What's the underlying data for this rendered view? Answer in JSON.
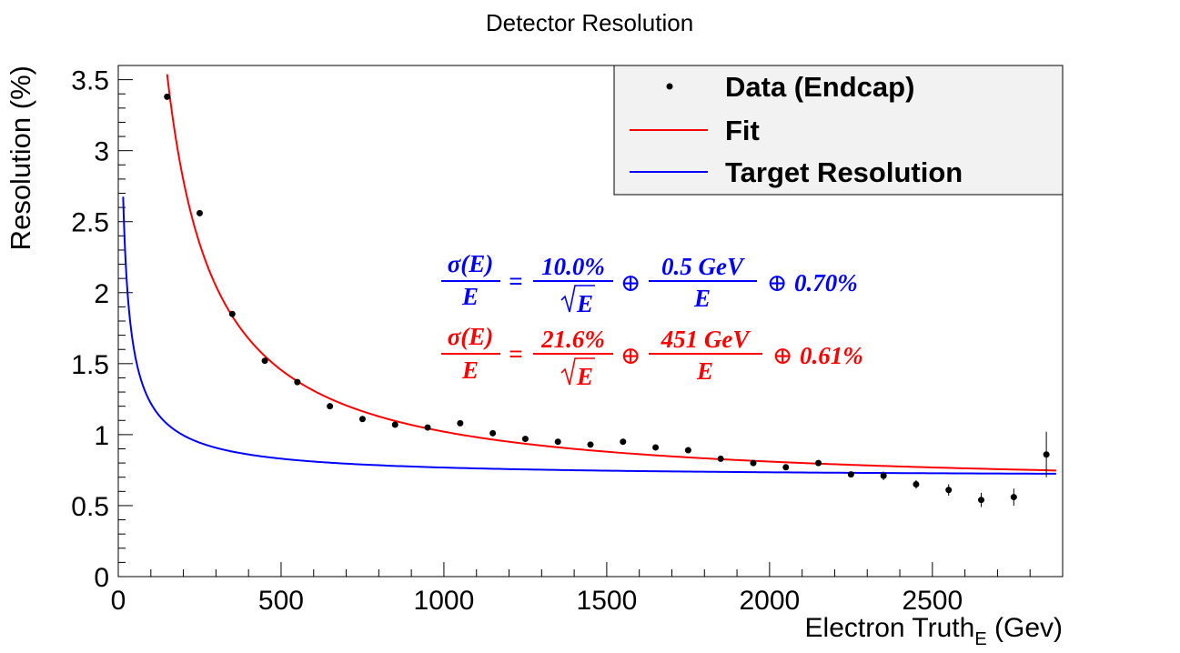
{
  "chart_data": {
    "type": "scatter",
    "title": "Detector Resolution",
    "ylabel": "Resolution (%)",
    "xlabel_main": "Electron Truth",
    "xlabel_sub": "E",
    "xlabel_unit": " (Gev)",
    "xlim": [
      0,
      2900
    ],
    "ylim": [
      0,
      3.6
    ],
    "xticks": [
      0,
      500,
      1000,
      1500,
      2000,
      2500
    ],
    "xtick_labels": [
      "0",
      "500",
      "1000",
      "1500",
      "2000",
      "2500"
    ],
    "yticks": [
      0,
      0.5,
      1,
      1.5,
      2,
      2.5,
      3,
      3.5
    ],
    "ytick_labels": [
      "0",
      "0.5",
      "1",
      "1.5",
      "2",
      "2.5",
      "3",
      "3.5"
    ],
    "legend": {
      "placement": "top-right",
      "entries": [
        "Data (Endcap)",
        "Fit",
        "Target Resolution"
      ]
    },
    "series": [
      {
        "name": "Data (Endcap)",
        "kind": "points",
        "color": "#000000",
        "x": [
          150,
          250,
          350,
          450,
          550,
          650,
          750,
          850,
          950,
          1050,
          1150,
          1250,
          1350,
          1450,
          1550,
          1650,
          1750,
          1850,
          1950,
          2050,
          2150,
          2250,
          2350,
          2450,
          2550,
          2650,
          2750,
          2850
        ],
        "y": [
          3.38,
          2.56,
          1.85,
          1.52,
          1.37,
          1.2,
          1.11,
          1.07,
          1.05,
          1.08,
          1.01,
          0.97,
          0.95,
          0.93,
          0.95,
          0.91,
          0.89,
          0.83,
          0.8,
          0.77,
          0.8,
          0.72,
          0.71,
          0.65,
          0.61,
          0.54,
          0.56,
          0.86
        ],
        "yerr": [
          0.02,
          0.02,
          0.01,
          0.01,
          0.01,
          0.01,
          0.01,
          0.01,
          0.01,
          0.01,
          0.01,
          0.01,
          0.01,
          0.01,
          0.01,
          0.01,
          0.01,
          0.01,
          0.01,
          0.01,
          0.02,
          0.02,
          0.03,
          0.03,
          0.04,
          0.05,
          0.06,
          0.16
        ]
      },
      {
        "name": "Fit",
        "kind": "curve",
        "color": "#ff0000",
        "stochastic": 21.6,
        "noise": 451,
        "constant": 0.61,
        "x_range": [
          150,
          2880
        ]
      },
      {
        "name": "Target Resolution",
        "kind": "curve",
        "color": "#0000ff",
        "stochastic": 10.0,
        "noise": 0.5,
        "constant": 0.7,
        "x_range": [
          15,
          2880
        ]
      }
    ],
    "annotations": {
      "blue": {
        "color": "#0000ff",
        "lhs_num": "σ(E)",
        "lhs_den": "E",
        "eq": "=",
        "t1_num": "10.0%",
        "t1_den": "E",
        "oplus1": "⊕",
        "t2_num": "0.5 GeV",
        "t2_den": "E",
        "oplus2": "⊕",
        "t3": "0.70%"
      },
      "red": {
        "color": "#ff0000",
        "lhs_num": "σ(E)",
        "lhs_den": "E",
        "eq": "=",
        "t1_num": "21.6%",
        "t1_den": "E",
        "oplus1": "⊕",
        "t2_num": "451 GeV",
        "t2_den": "E",
        "oplus2": "⊕",
        "t3": "0.61%"
      }
    }
  }
}
